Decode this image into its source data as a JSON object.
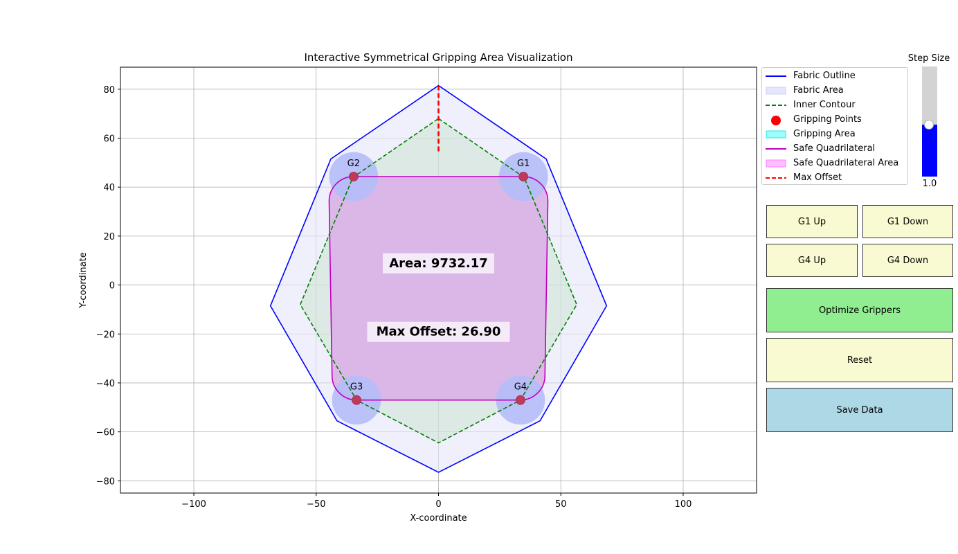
{
  "chart_data": {
    "type": "scatter",
    "title": "Interactive Symmetrical Gripping Area Visualization",
    "xlabel": "X-coordinate",
    "ylabel": "Y-coordinate",
    "xlim": [
      -130,
      130
    ],
    "ylim": [
      -85,
      89
    ],
    "xticks": [
      -100,
      -50,
      0,
      50,
      100
    ],
    "yticks": [
      -80,
      -60,
      -40,
      -20,
      0,
      20,
      40,
      60,
      80
    ],
    "xtick_labels": [
      "−100",
      "−50",
      "0",
      "50",
      "100"
    ],
    "ytick_labels": [
      "−80",
      "−60",
      "−40",
      "−20",
      "0",
      "20",
      "40",
      "60",
      "80"
    ],
    "grid": true,
    "legend_position": "right",
    "fabric_outline": [
      [
        0,
        81.5
      ],
      [
        44,
        51.5
      ],
      [
        68.7,
        -8.5
      ],
      [
        41.5,
        -55.5
      ],
      [
        0,
        -76.5
      ],
      [
        -41.5,
        -55.5
      ],
      [
        -68.7,
        -8.5
      ],
      [
        -44,
        51.5
      ]
    ],
    "inner_contour": [
      [
        0,
        68
      ],
      [
        35,
        44
      ],
      [
        56.5,
        -8
      ],
      [
        33.5,
        -47
      ],
      [
        0,
        -64.5
      ],
      [
        -33.5,
        -47
      ],
      [
        -56.5,
        -8
      ],
      [
        -35,
        44
      ]
    ],
    "gripping_points": [
      {
        "label": "G1",
        "x": 34.7,
        "y": 44.3
      },
      {
        "label": "G2",
        "x": -34.7,
        "y": 44.3
      },
      {
        "label": "G3",
        "x": -33.5,
        "y": -47.0
      },
      {
        "label": "G4",
        "x": 33.5,
        "y": -47.0
      }
    ],
    "gripping_radius": 10,
    "safe_quadrilateral": [
      [
        44.7,
        44.3
      ],
      [
        43.5,
        -47.0
      ],
      [
        -43.5,
        -47.0
      ],
      [
        -44.7,
        44.3
      ]
    ],
    "safe_corner_radius": 10,
    "max_offset_line": [
      [
        0,
        81.5
      ],
      [
        0,
        54.6
      ]
    ],
    "area_text": "Area: 9732.17",
    "area_text_pos": [
      0,
      9
    ],
    "offset_text": "Max Offset: 26.90",
    "offset_text_pos": [
      0,
      -19
    ],
    "colors": {
      "fabric_outline": "#0000ff",
      "fabric_area": "#e6e6fa",
      "inner_contour": "#008000",
      "gripping_points": "#ff0000",
      "gripping_area": "#00ffff",
      "gripping_area_shown": "#b4bcf8",
      "safe_quadrilateral": "#bf00bf",
      "safe_area": "#ff00ff",
      "max_offset": "#ff0000",
      "point_label": "#ff0000"
    }
  },
  "legend": {
    "items": [
      {
        "label": "Fabric Outline",
        "kind": "line",
        "color": "#0000ff",
        "dash": ""
      },
      {
        "label": "Fabric Area",
        "kind": "patch",
        "color": "#e6e6fa",
        "edge": "#c8c8f0"
      },
      {
        "label": "Inner Contour",
        "kind": "line",
        "color": "#008000",
        "dash": "6,3"
      },
      {
        "label": "Gripping Points",
        "kind": "dot",
        "color": "#ff0000"
      },
      {
        "label": "Gripping Area",
        "kind": "patch",
        "color": "#99ffff",
        "edge": "#00e0e0"
      },
      {
        "label": "Safe Quadrilateral",
        "kind": "line",
        "color": "#bf00bf",
        "dash": ""
      },
      {
        "label": "Safe Quadrilateral Area",
        "kind": "patch",
        "color": "#ffbfff",
        "edge": "#ff66ff"
      },
      {
        "label": "Max Offset",
        "kind": "line",
        "color": "#ff0000",
        "dash": "6,3"
      }
    ]
  },
  "slider": {
    "title": "Step Size",
    "value_text": "1.0",
    "fraction": 0.47
  },
  "buttons": {
    "g1_up": "G1 Up",
    "g1_down": "G1 Down",
    "g4_up": "G4 Up",
    "g4_down": "G4 Down",
    "optimize": "Optimize Grippers",
    "reset": "Reset",
    "save": "Save Data"
  }
}
